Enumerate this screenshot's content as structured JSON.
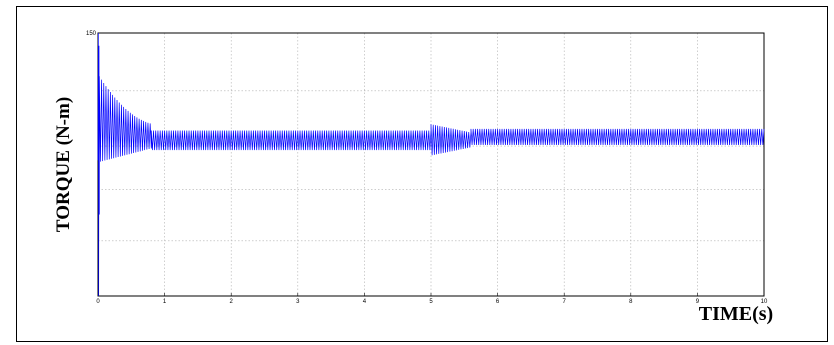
{
  "chart_data": {
    "type": "line",
    "title": "",
    "xlabel": "TIME(s)",
    "ylabel": "TORQUE (N-m)",
    "xlim": [
      0,
      10
    ],
    "x_ticks": [
      "0",
      "1",
      "2",
      "3",
      "4",
      "5",
      "6",
      "7",
      "8",
      "9",
      "10"
    ],
    "y_top_tick": "150",
    "grid": true,
    "line_color": "#0000ff",
    "series": [
      {
        "segments": [
          {
            "t_start": 0.0,
            "t_end": 0.02,
            "low": -160,
            "high": 150,
            "note_ripple": false
          },
          {
            "t_start": 0.02,
            "t_end": 0.8,
            "low": 2,
            "high": 55,
            "decay": true
          },
          {
            "t_start": 0.8,
            "t_end": 5.0,
            "low": 12,
            "high": 35
          },
          {
            "t_start": 5.0,
            "t_end": 5.6,
            "low": 8,
            "high": 40,
            "decay": true
          },
          {
            "t_start": 5.6,
            "t_end": 10.0,
            "low": 18,
            "high": 37
          }
        ]
      }
    ]
  }
}
